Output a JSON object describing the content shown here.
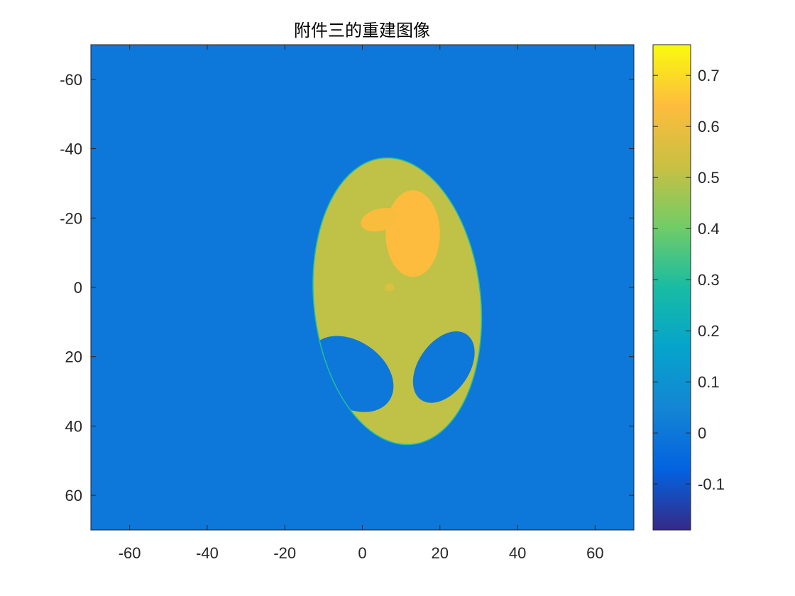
{
  "chart_data": {
    "type": "heatmap",
    "title": "附件三的重建图像",
    "xlabel": "",
    "ylabel": "",
    "xlim": [
      -70,
      70
    ],
    "ylim": [
      -70,
      70
    ],
    "y_reversed": true,
    "x_ticks": [
      -60,
      -40,
      -20,
      0,
      20,
      40,
      60
    ],
    "y_ticks": [
      -60,
      -40,
      -20,
      0,
      20,
      40,
      60
    ],
    "colormap": "parula",
    "clim": [
      -0.19,
      0.76
    ],
    "colorbar": {
      "location": "right",
      "ticks": [
        0.7,
        0.6,
        0.5,
        0.4,
        0.3,
        0.2,
        0.1,
        0,
        -0.1
      ],
      "tick_labels": [
        "0.7",
        "0.6",
        "0.5",
        "0.4",
        "0.3",
        "0.2",
        "0.1",
        "0",
        "-0.1"
      ]
    },
    "background_value": 0.0,
    "regions": [
      {
        "name": "head",
        "shape": "ellipse",
        "center": [
          9,
          4
        ],
        "semi_axes": [
          21.5,
          41.5
        ],
        "angle_deg": -6,
        "value": 0.51
      },
      {
        "name": "left-eye",
        "shape": "ellipse",
        "center": [
          -3,
          25
        ],
        "semi_axes": [
          8.5,
          13.5
        ],
        "angle_deg": -55,
        "value": 0.0
      },
      {
        "name": "right-eye",
        "shape": "ellipse",
        "center": [
          21,
          23
        ],
        "semi_axes": [
          6.5,
          11.5
        ],
        "angle_deg": 35,
        "value": 0.0
      },
      {
        "name": "upper-bright",
        "shape": "ellipse",
        "center": [
          13,
          -15.5
        ],
        "semi_axes": [
          7,
          12.5
        ],
        "angle_deg": 0,
        "value": 0.64
      },
      {
        "name": "small-bright",
        "shape": "ellipse",
        "center": [
          4.5,
          -19.5
        ],
        "semi_axes": [
          5,
          3.2
        ],
        "angle_deg": -15,
        "value": 0.63
      },
      {
        "name": "dot",
        "shape": "ellipse",
        "center": [
          7,
          0
        ],
        "semi_axes": [
          1.2,
          1.2
        ],
        "angle_deg": 0,
        "value": 0.56
      }
    ]
  }
}
